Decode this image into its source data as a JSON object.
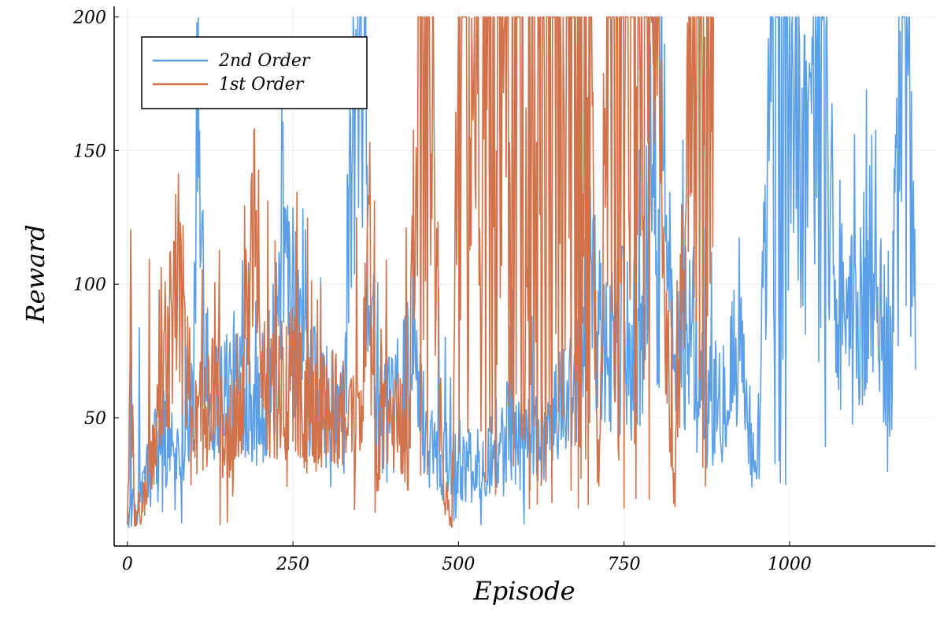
{
  "chart_data": {
    "type": "line",
    "title": "",
    "xlabel": "Episode",
    "ylabel": "Reward",
    "xlim": [
      -20,
      1220
    ],
    "ylim": [
      2,
      204
    ],
    "xticks": [
      0,
      250,
      500,
      750,
      1000
    ],
    "xtick_labels": [
      "0",
      "250",
      "500",
      "750",
      "1000"
    ],
    "yticks": [
      50,
      100,
      150,
      200
    ],
    "ytick_labels": [
      "50",
      "100",
      "150",
      "200"
    ],
    "grid": true,
    "legend_position": "top-left",
    "series": [
      {
        "name": "2nd Order",
        "color": "#5b9fe8",
        "x_range": [
          0,
          1190
        ],
        "sampled_points": [
          [
            0,
            12
          ],
          [
            25,
            25
          ],
          [
            50,
            45
          ],
          [
            75,
            40
          ],
          [
            100,
            60
          ],
          [
            105,
            150
          ],
          [
            125,
            55
          ],
          [
            150,
            60
          ],
          [
            175,
            65
          ],
          [
            200,
            55
          ],
          [
            225,
            75
          ],
          [
            240,
            152
          ],
          [
            250,
            90
          ],
          [
            275,
            60
          ],
          [
            300,
            55
          ],
          [
            325,
            50
          ],
          [
            340,
            153
          ],
          [
            355,
            170
          ],
          [
            375,
            55
          ],
          [
            400,
            50
          ],
          [
            425,
            70
          ],
          [
            450,
            45
          ],
          [
            475,
            35
          ],
          [
            500,
            35
          ],
          [
            525,
            30
          ],
          [
            550,
            40
          ],
          [
            575,
            45
          ],
          [
            600,
            40
          ],
          [
            625,
            45
          ],
          [
            650,
            50
          ],
          [
            675,
            70
          ],
          [
            700,
            95
          ],
          [
            725,
            70
          ],
          [
            750,
            80
          ],
          [
            775,
            70
          ],
          [
            800,
            200
          ],
          [
            825,
            65
          ],
          [
            850,
            90
          ],
          [
            875,
            55
          ],
          [
            900,
            60
          ],
          [
            925,
            85
          ],
          [
            950,
            20
          ],
          [
            975,
            200
          ],
          [
            1000,
            180
          ],
          [
            1025,
            130
          ],
          [
            1050,
            200
          ],
          [
            1075,
            90
          ],
          [
            1100,
            80
          ],
          [
            1125,
            110
          ],
          [
            1150,
            60
          ],
          [
            1175,
            200
          ],
          [
            1190,
            90
          ]
        ]
      },
      {
        "name": "1st Order",
        "color": "#d2724a",
        "x_range": [
          0,
          885
        ],
        "sampled_points": [
          [
            0,
            10
          ],
          [
            5,
            92
          ],
          [
            10,
            12
          ],
          [
            25,
            20
          ],
          [
            50,
            55
          ],
          [
            75,
            108
          ],
          [
            100,
            45
          ],
          [
            125,
            60
          ],
          [
            150,
            40
          ],
          [
            175,
            70
          ],
          [
            190,
            131
          ],
          [
            200,
            60
          ],
          [
            225,
            58
          ],
          [
            250,
            65
          ],
          [
            275,
            50
          ],
          [
            300,
            55
          ],
          [
            325,
            50
          ],
          [
            350,
            45
          ],
          [
            365,
            115
          ],
          [
            375,
            40
          ],
          [
            400,
            50
          ],
          [
            425,
            40
          ],
          [
            440,
            200
          ],
          [
            460,
            175
          ],
          [
            475,
            30
          ],
          [
            490,
            10
          ],
          [
            500,
            200
          ],
          [
            525,
            170
          ],
          [
            550,
            200
          ],
          [
            575,
            180
          ],
          [
            600,
            200
          ],
          [
            650,
            200
          ],
          [
            700,
            200
          ],
          [
            710,
            20
          ],
          [
            725,
            200
          ],
          [
            750,
            200
          ],
          [
            760,
            195
          ],
          [
            775,
            200
          ],
          [
            800,
            170
          ],
          [
            825,
            13
          ],
          [
            850,
            200
          ],
          [
            875,
            200
          ],
          [
            885,
            200
          ]
        ]
      }
    ]
  }
}
